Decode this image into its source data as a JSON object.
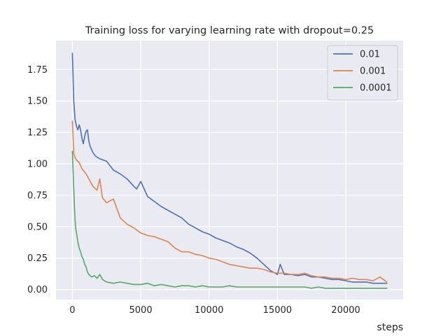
{
  "chart_data": {
    "type": "line",
    "title": "Training loss for varying learning rate with dropout=0.25",
    "xlabel": "steps",
    "ylabel": "",
    "xlim": [
      -1200,
      24200
    ],
    "ylim": [
      -0.08,
      1.98
    ],
    "xticks": [
      0,
      5000,
      10000,
      15000,
      20000
    ],
    "yticks": [
      0.0,
      0.25,
      0.5,
      0.75,
      1.0,
      1.25,
      1.5,
      1.75
    ],
    "ytick_labels": [
      "0.00",
      "0.25",
      "0.50",
      "0.75",
      "1.00",
      "1.25",
      "1.50",
      "1.75"
    ],
    "grid": true,
    "legend_position": "top-right",
    "background": "#eaeaf2",
    "series": [
      {
        "name": "0.01",
        "color": "#4c72b0",
        "x": [
          0,
          100,
          200,
          300,
          400,
          500,
          600,
          700,
          800,
          900,
          1000,
          1100,
          1200,
          1300,
          1500,
          1700,
          2000,
          2500,
          3000,
          3500,
          4000,
          4500,
          4700,
          5000,
          5500,
          6000,
          6500,
          7000,
          7500,
          8000,
          8500,
          9000,
          9500,
          10000,
          10500,
          11000,
          11500,
          12000,
          12500,
          13000,
          13500,
          14000,
          14500,
          15000,
          15200,
          15500,
          16000,
          16500,
          17000,
          17500,
          18000,
          18500,
          19000,
          19500,
          20000,
          20500,
          21000,
          21500,
          22000,
          22500,
          23000
        ],
        "values": [
          1.88,
          1.5,
          1.35,
          1.3,
          1.27,
          1.31,
          1.27,
          1.2,
          1.16,
          1.22,
          1.26,
          1.27,
          1.18,
          1.14,
          1.09,
          1.06,
          1.04,
          1.02,
          0.95,
          0.92,
          0.88,
          0.82,
          0.8,
          0.86,
          0.74,
          0.7,
          0.66,
          0.63,
          0.6,
          0.57,
          0.52,
          0.49,
          0.46,
          0.44,
          0.41,
          0.39,
          0.37,
          0.34,
          0.32,
          0.29,
          0.25,
          0.2,
          0.15,
          0.12,
          0.2,
          0.12,
          0.12,
          0.11,
          0.12,
          0.1,
          0.1,
          0.09,
          0.08,
          0.08,
          0.07,
          0.06,
          0.06,
          0.06,
          0.05,
          0.05,
          0.05
        ]
      },
      {
        "name": "0.001",
        "color": "#dd8452",
        "x": [
          0,
          100,
          200,
          300,
          500,
          700,
          1000,
          1200,
          1500,
          1800,
          2000,
          2200,
          2500,
          3000,
          3500,
          4000,
          4500,
          5000,
          5500,
          6000,
          6500,
          7000,
          7500,
          8000,
          8500,
          9000,
          9500,
          10000,
          10500,
          11000,
          11500,
          12000,
          12500,
          13000,
          13500,
          14000,
          14500,
          15000,
          15500,
          16000,
          16500,
          17000,
          17500,
          18000,
          18500,
          19000,
          19500,
          20000,
          20500,
          21000,
          21500,
          22000,
          22500,
          23000
        ],
        "values": [
          1.34,
          1.08,
          1.05,
          1.03,
          1.01,
          0.96,
          0.92,
          0.88,
          0.82,
          0.79,
          0.88,
          0.73,
          0.69,
          0.72,
          0.57,
          0.52,
          0.49,
          0.45,
          0.43,
          0.42,
          0.4,
          0.38,
          0.33,
          0.3,
          0.3,
          0.28,
          0.27,
          0.25,
          0.24,
          0.22,
          0.2,
          0.19,
          0.18,
          0.17,
          0.17,
          0.16,
          0.14,
          0.13,
          0.13,
          0.12,
          0.12,
          0.13,
          0.11,
          0.1,
          0.1,
          0.09,
          0.09,
          0.08,
          0.09,
          0.08,
          0.08,
          0.07,
          0.1,
          0.06
        ]
      },
      {
        "name": "0.0001",
        "color": "#55a868",
        "x": [
          0,
          50,
          100,
          150,
          200,
          250,
          300,
          400,
          500,
          600,
          700,
          800,
          900,
          1000,
          1100,
          1200,
          1400,
          1600,
          1800,
          2000,
          2200,
          2500,
          3000,
          3500,
          4000,
          4500,
          5000,
          5500,
          6000,
          6500,
          7000,
          7500,
          8000,
          8500,
          9000,
          9500,
          10000,
          10500,
          11000,
          11500,
          12000,
          12500,
          13000,
          13500,
          14000,
          14500,
          15000,
          15500,
          16000,
          16500,
          17000,
          17500,
          18000,
          18500,
          19000,
          19500,
          20000,
          20500,
          21000,
          21500,
          22000,
          22500,
          23000
        ],
        "values": [
          1.1,
          0.95,
          0.8,
          0.65,
          0.55,
          0.48,
          0.45,
          0.38,
          0.33,
          0.3,
          0.26,
          0.24,
          0.2,
          0.18,
          0.14,
          0.12,
          0.1,
          0.11,
          0.09,
          0.12,
          0.08,
          0.06,
          0.05,
          0.06,
          0.05,
          0.04,
          0.04,
          0.05,
          0.03,
          0.04,
          0.03,
          0.02,
          0.03,
          0.03,
          0.02,
          0.03,
          0.02,
          0.02,
          0.02,
          0.03,
          0.02,
          0.02,
          0.02,
          0.02,
          0.02,
          0.02,
          0.02,
          0.02,
          0.02,
          0.02,
          0.02,
          0.01,
          0.02,
          0.01,
          0.01,
          0.01,
          0.01,
          0.01,
          0.01,
          0.01,
          0.01,
          0.01,
          0.01
        ]
      }
    ]
  }
}
